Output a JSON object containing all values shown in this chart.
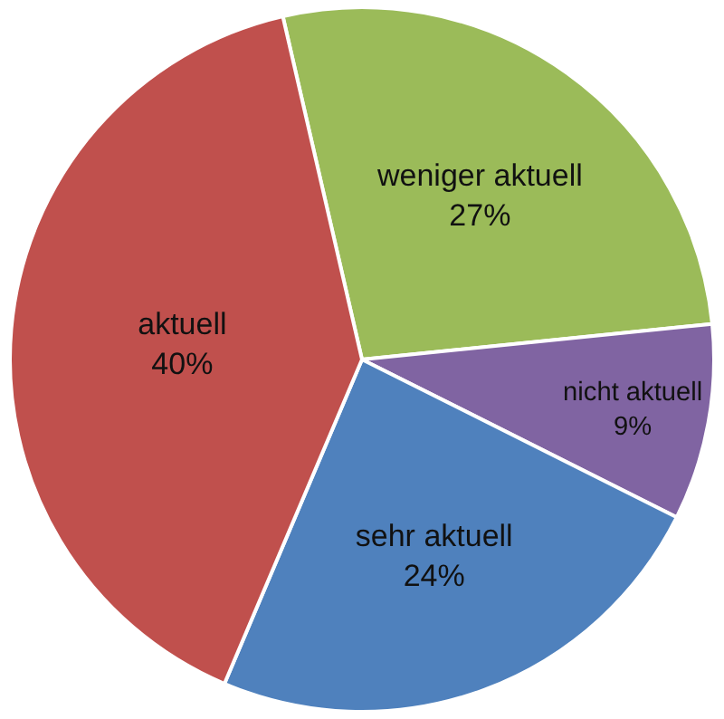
{
  "chart_data": {
    "type": "pie",
    "categories": [
      "weniger aktuell",
      "nicht aktuell",
      "sehr aktuell",
      "aktuell"
    ],
    "values": [
      27,
      9,
      24,
      40
    ],
    "value_labels": [
      "27%",
      "9%",
      "24%",
      "40%"
    ],
    "colors": [
      "#9bbb59",
      "#8064a2",
      "#4f81bd",
      "#c0504d"
    ],
    "legend": false
  }
}
